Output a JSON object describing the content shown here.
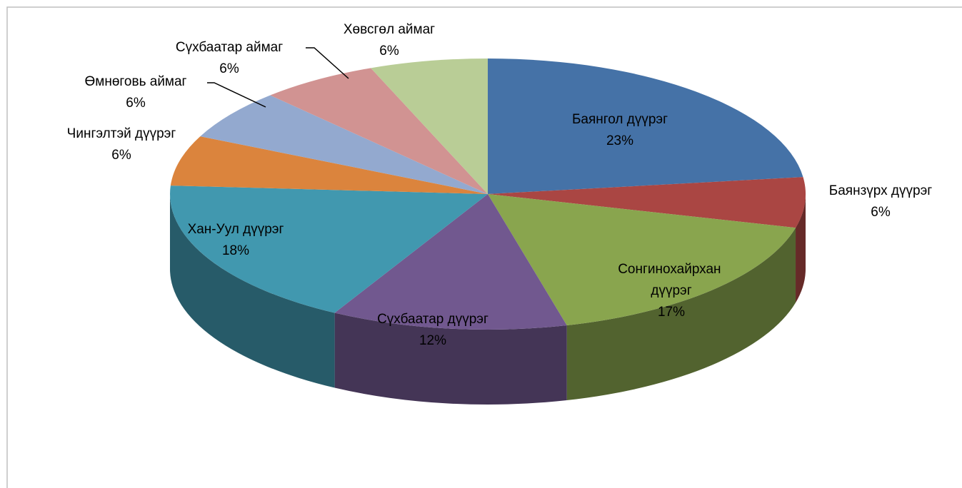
{
  "chart_data": {
    "type": "pie3d",
    "categories": [
      "Баянгол дүүрэг",
      "Баянзүрх дүүрэг",
      "Сонгинохайрхан дүүрэг",
      "Сүхбаатар дүүрэг",
      "Хан-Уул дүүрэг",
      "Чингэлтэй дүүрэг",
      "Өмнөговь аймаг",
      "Сүхбаатар аймаг",
      "Хөвсгөл аймаг"
    ],
    "values": [
      23,
      6,
      17,
      12,
      18,
      6,
      6,
      6,
      6
    ],
    "value_labels": [
      "23%",
      "6%",
      "17%",
      "12%",
      "18%",
      "6%",
      "6%",
      "6%",
      "6%"
    ],
    "colors": [
      "#4572a7",
      "#aa4643",
      "#89a54e",
      "#71588f",
      "#4198af",
      "#db843d",
      "#93a9cf",
      "#d19392",
      "#b9cd96"
    ]
  }
}
